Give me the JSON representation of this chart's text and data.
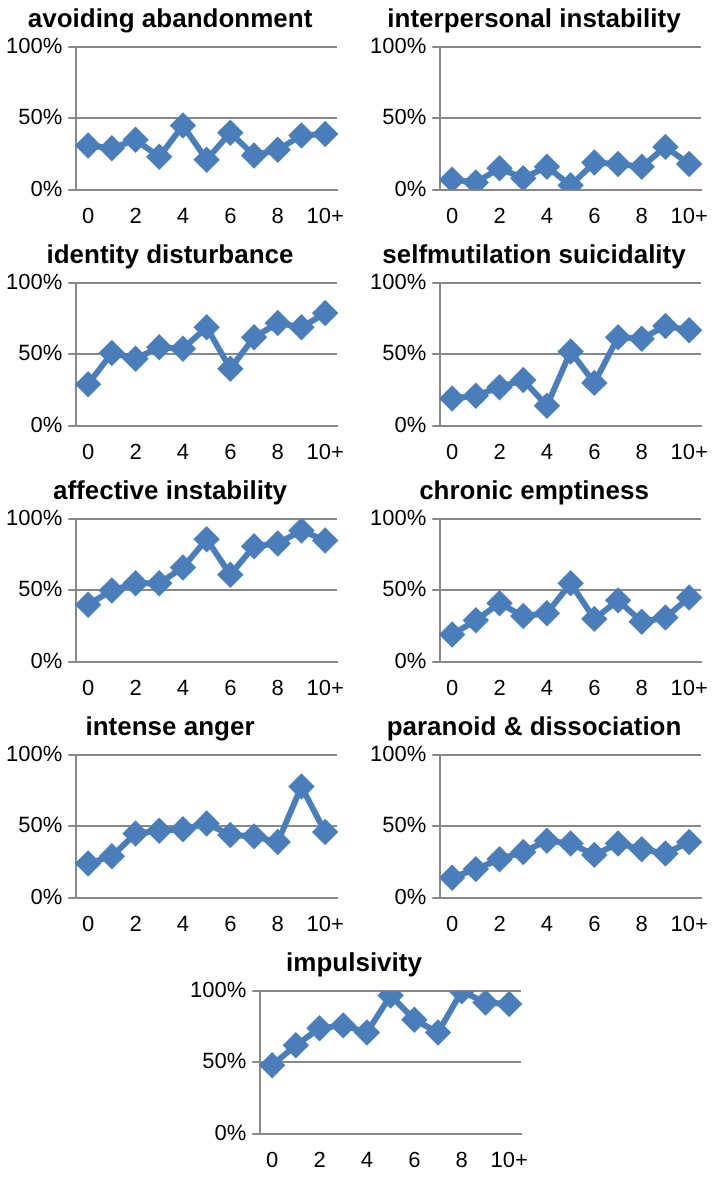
{
  "chart_data": [
    {
      "type": "line",
      "title": "avoiding abandonment",
      "categories": [
        "0",
        null,
        "2",
        null,
        "4",
        null,
        "6",
        null,
        "8",
        null,
        "10+"
      ],
      "values": [
        31,
        29,
        35,
        23,
        45,
        21,
        40,
        24,
        28,
        38,
        39
      ],
      "color": "#4a7ebb",
      "ylim": [
        0,
        100
      ],
      "yticks": [
        {
          "value": 0,
          "label": "0%"
        },
        {
          "value": 50,
          "label": "50%"
        },
        {
          "value": 100,
          "label": "100%"
        }
      ],
      "grid": "y",
      "marker": "diamond"
    },
    {
      "type": "line",
      "title": "interpersonal instability",
      "categories": [
        "0",
        null,
        "2",
        null,
        "4",
        null,
        "6",
        null,
        "8",
        null,
        "10+"
      ],
      "values": [
        7,
        5,
        15,
        8,
        16,
        3,
        19,
        18,
        16,
        30,
        18
      ],
      "color": "#4a7ebb",
      "ylim": [
        0,
        100
      ],
      "yticks": [
        {
          "value": 0,
          "label": "0%"
        },
        {
          "value": 50,
          "label": "50%"
        },
        {
          "value": 100,
          "label": "100%"
        }
      ],
      "grid": "y",
      "marker": "diamond"
    },
    {
      "type": "line",
      "title": "identity disturbance",
      "categories": [
        "0",
        null,
        "2",
        null,
        "4",
        null,
        "6",
        null,
        "8",
        null,
        "10+"
      ],
      "values": [
        29,
        51,
        47,
        55,
        54,
        69,
        40,
        62,
        72,
        69,
        79
      ],
      "color": "#4a7ebb",
      "ylim": [
        0,
        100
      ],
      "yticks": [
        {
          "value": 0,
          "label": "0%"
        },
        {
          "value": 50,
          "label": "50%"
        },
        {
          "value": 100,
          "label": "100%"
        }
      ],
      "grid": "y",
      "marker": "diamond"
    },
    {
      "type": "line",
      "title": "selfmutilation suicidality",
      "categories": [
        "0",
        null,
        "2",
        null,
        "4",
        null,
        "6",
        null,
        "8",
        null,
        "10+"
      ],
      "values": [
        19,
        21,
        27,
        32,
        14,
        52,
        30,
        62,
        61,
        70,
        67
      ],
      "color": "#4a7ebb",
      "ylim": [
        0,
        100
      ],
      "yticks": [
        {
          "value": 0,
          "label": "0%"
        },
        {
          "value": 50,
          "label": "50%"
        },
        {
          "value": 100,
          "label": "100%"
        }
      ],
      "grid": "y",
      "marker": "diamond"
    },
    {
      "type": "line",
      "title": "affective instability",
      "categories": [
        "0",
        null,
        "2",
        null,
        "4",
        null,
        "6",
        null,
        "8",
        null,
        "10+"
      ],
      "values": [
        40,
        50,
        55,
        55,
        66,
        86,
        61,
        81,
        83,
        92,
        85
      ],
      "color": "#4a7ebb",
      "ylim": [
        0,
        100
      ],
      "yticks": [
        {
          "value": 0,
          "label": "0%"
        },
        {
          "value": 50,
          "label": "50%"
        },
        {
          "value": 100,
          "label": "100%"
        }
      ],
      "grid": "y",
      "marker": "diamond"
    },
    {
      "type": "line",
      "title": "chronic emptiness",
      "categories": [
        "0",
        null,
        "2",
        null,
        "4",
        null,
        "6",
        null,
        "8",
        null,
        "10+"
      ],
      "values": [
        19,
        29,
        41,
        32,
        34,
        55,
        30,
        43,
        28,
        31,
        45
      ],
      "color": "#4a7ebb",
      "ylim": [
        0,
        100
      ],
      "yticks": [
        {
          "value": 0,
          "label": "0%"
        },
        {
          "value": 50,
          "label": "50%"
        },
        {
          "value": 100,
          "label": "100%"
        }
      ],
      "grid": "y",
      "marker": "diamond"
    },
    {
      "type": "line",
      "title": "intense anger",
      "categories": [
        "0",
        null,
        "2",
        null,
        "4",
        null,
        "6",
        null,
        "8",
        null,
        "10+"
      ],
      "values": [
        24,
        29,
        45,
        47,
        48,
        52,
        44,
        43,
        39,
        78,
        46
      ],
      "color": "#4a7ebb",
      "ylim": [
        0,
        100
      ],
      "yticks": [
        {
          "value": 0,
          "label": "0%"
        },
        {
          "value": 50,
          "label": "50%"
        },
        {
          "value": 100,
          "label": "100%"
        }
      ],
      "grid": "y",
      "marker": "diamond"
    },
    {
      "type": "line",
      "title": "paranoid & dissociation",
      "categories": [
        "0",
        null,
        "2",
        null,
        "4",
        null,
        "6",
        null,
        "8",
        null,
        "10+"
      ],
      "values": [
        14,
        20,
        27,
        32,
        40,
        38,
        30,
        38,
        34,
        31,
        39
      ],
      "color": "#4a7ebb",
      "ylim": [
        0,
        100
      ],
      "yticks": [
        {
          "value": 0,
          "label": "0%"
        },
        {
          "value": 50,
          "label": "50%"
        },
        {
          "value": 100,
          "label": "100%"
        }
      ],
      "grid": "y",
      "marker": "diamond"
    },
    {
      "type": "line",
      "title": "impulsivity",
      "categories": [
        "0",
        null,
        "2",
        null,
        "4",
        null,
        "6",
        null,
        "8",
        null,
        "10+"
      ],
      "values": [
        48,
        62,
        74,
        76,
        71,
        97,
        80,
        71,
        100,
        92,
        91
      ],
      "color": "#4a7ebb",
      "ylim": [
        0,
        100
      ],
      "yticks": [
        {
          "value": 0,
          "label": "0%"
        },
        {
          "value": 50,
          "label": "50%"
        },
        {
          "value": 100,
          "label": "100%"
        }
      ],
      "grid": "y",
      "marker": "diamond"
    }
  ]
}
